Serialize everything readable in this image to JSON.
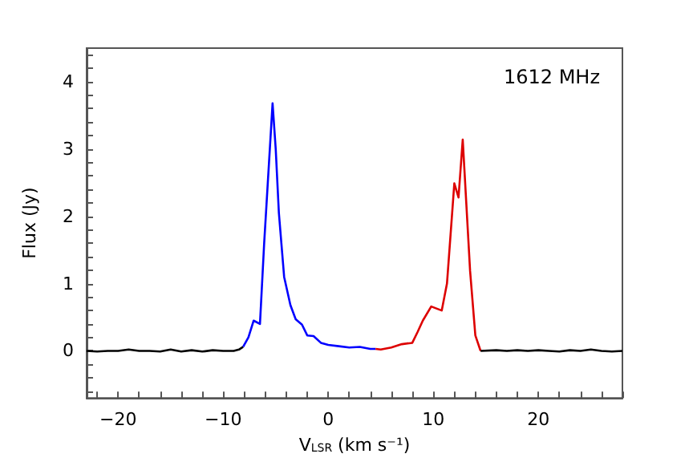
{
  "chart_data": {
    "type": "line",
    "xlabel": "V$_{LSR}$ (km s⁻¹)",
    "ylabel": "Flux (Jy)",
    "annotations": [
      "1612 MHz"
    ],
    "xlim": [
      -23,
      28
    ],
    "ylim": [
      -0.7,
      4.5
    ],
    "xticks": [
      -20,
      -10,
      0,
      10,
      20
    ],
    "yticks": [
      0,
      1,
      2,
      3,
      4
    ],
    "marker": "none",
    "line_style": "solid",
    "series": [
      {
        "color": "#000000",
        "x": [
          -23,
          -22,
          -21,
          -20,
          -19,
          -18,
          -17,
          -16,
          -15,
          -14,
          -13,
          -12,
          -11,
          -10,
          -9,
          -8.5,
          -8.1
        ],
        "values": [
          0,
          -0.01,
          0,
          0,
          0.02,
          0,
          0,
          -0.01,
          0.02,
          -0.01,
          0.01,
          -0.01,
          0.01,
          0,
          0,
          0.02,
          0.06
        ]
      },
      {
        "color": "#0000ff",
        "x": [
          -8.1,
          -7.6,
          -7.1,
          -6.5,
          -6.1,
          -5.3,
          -5.0,
          -4.7,
          -4.2,
          -3.6,
          -3.1,
          -2.5,
          -2.0,
          -1.4,
          -0.7,
          0,
          1,
          2,
          3,
          4,
          4.5
        ],
        "values": [
          0.06,
          0.2,
          0.45,
          0.4,
          1.6,
          3.68,
          3.0,
          2.05,
          1.1,
          0.68,
          0.47,
          0.39,
          0.23,
          0.22,
          0.12,
          0.09,
          0.07,
          0.05,
          0.06,
          0.03,
          0.03
        ]
      },
      {
        "color": "#dd0000",
        "x": [
          4.5,
          5,
          6,
          7,
          8,
          8.5,
          9,
          9.8,
          10.3,
          10.8,
          11.3,
          12,
          12.4,
          12.8,
          13.5,
          14,
          14.5
        ],
        "values": [
          0.03,
          0.02,
          0.05,
          0.1,
          0.12,
          0.28,
          0.45,
          0.66,
          0.63,
          0.6,
          1.0,
          2.49,
          2.28,
          3.14,
          1.19,
          0.23,
          0
        ]
      },
      {
        "color": "#000000",
        "x": [
          14.5,
          16,
          17,
          18,
          19,
          20,
          21,
          22,
          23,
          24,
          25,
          26,
          27,
          28
        ],
        "values": [
          0,
          0.01,
          0,
          0.01,
          0,
          0.01,
          0,
          -0.01,
          0.01,
          0,
          0.02,
          0,
          -0.01,
          0
        ]
      }
    ]
  }
}
